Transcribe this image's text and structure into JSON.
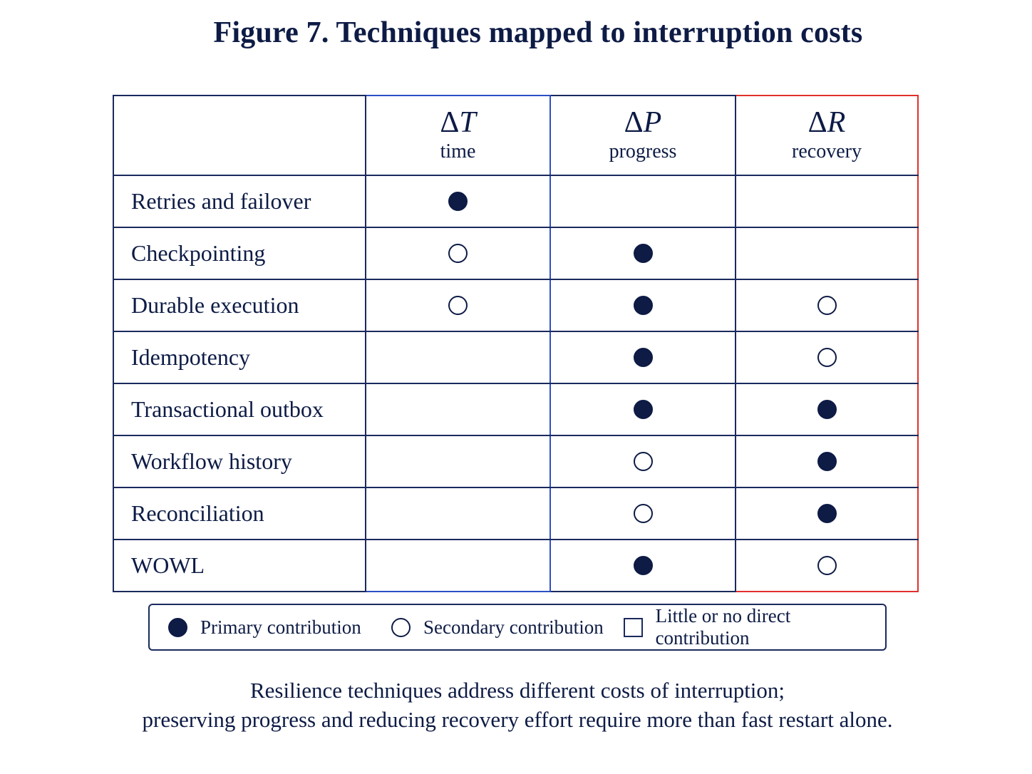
{
  "title": "Figure 7. Techniques mapped to interruption costs",
  "columns": [
    {
      "symbol_delta": "Δ",
      "symbol_var": "T",
      "label": "time"
    },
    {
      "symbol_delta": "Δ",
      "symbol_var": "P",
      "label": "progress"
    },
    {
      "symbol_delta": "Δ",
      "symbol_var": "R",
      "label": "recovery"
    }
  ],
  "rows": [
    {
      "label": "Retries and failover",
      "cells": [
        "primary",
        "none",
        "none"
      ]
    },
    {
      "label": "Checkpointing",
      "cells": [
        "secondary",
        "primary",
        "none"
      ]
    },
    {
      "label": "Durable execution",
      "cells": [
        "secondary",
        "primary",
        "secondary"
      ]
    },
    {
      "label": "Idempotency",
      "cells": [
        "none",
        "primary",
        "secondary"
      ]
    },
    {
      "label": "Transactional outbox",
      "cells": [
        "none",
        "primary",
        "primary"
      ]
    },
    {
      "label": "Workflow history",
      "cells": [
        "none",
        "secondary",
        "primary"
      ]
    },
    {
      "label": "Reconciliation",
      "cells": [
        "none",
        "secondary",
        "primary"
      ]
    },
    {
      "label": "WOWL",
      "cells": [
        "none",
        "primary",
        "secondary"
      ]
    }
  ],
  "legend": {
    "primary": "Primary contribution",
    "secondary": "Secondary contribution",
    "none": "Little or no direct contribution"
  },
  "caption": {
    "line1": "Resilience techniques address different costs of interruption;",
    "line2": "preserving progress and reducing recovery effort require more than fast restart alone."
  },
  "colors": {
    "ink": "#0d1b45",
    "highlight_time": "#2c4fc4",
    "highlight_recovery": "#e0302b"
  }
}
